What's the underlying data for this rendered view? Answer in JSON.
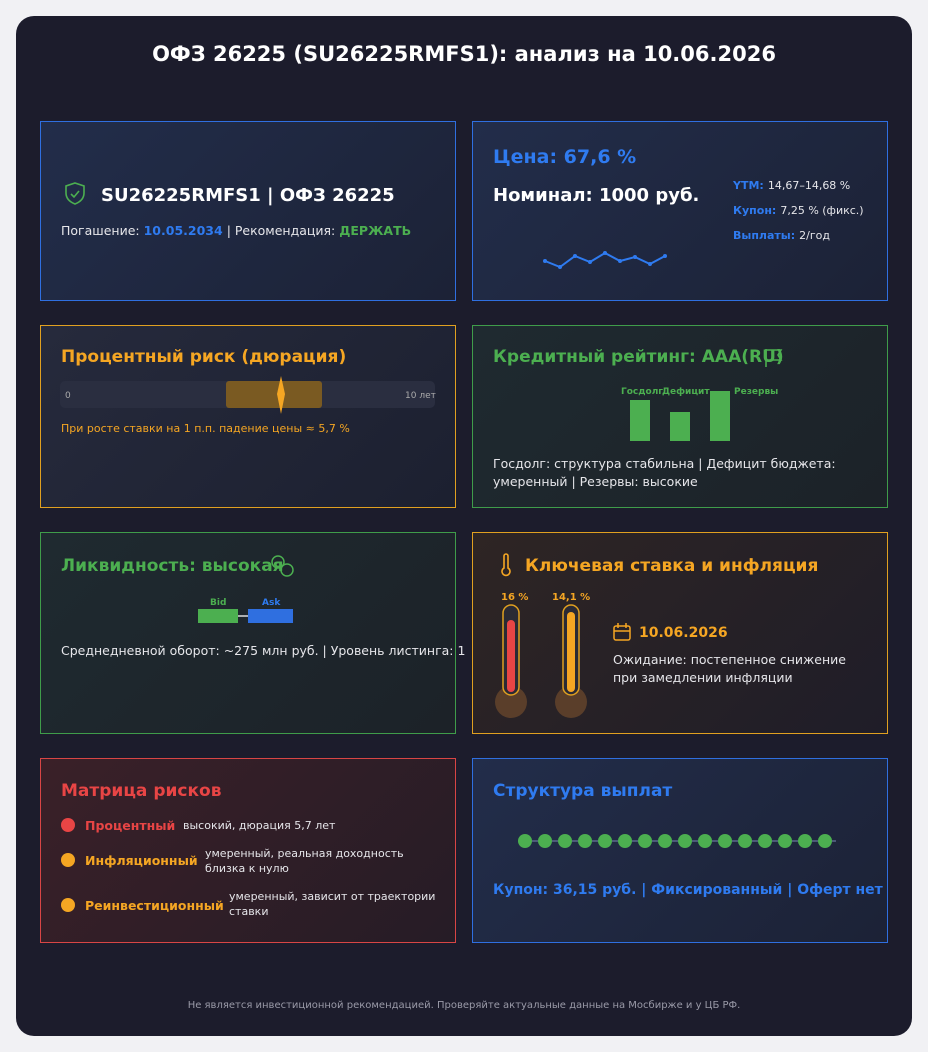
{
  "header": {
    "title": "ОФЗ 26225 (SU26225RMFS1): анализ на 10.06.2026"
  },
  "cards": {
    "bond": {
      "title": "SU26225RMFS1 | ОФЗ 26225",
      "maturity_label": "Погашение:",
      "maturity": "10.05.2034",
      "recommendation_label": "| Рекомендация:",
      "recommendation": "ДЕРЖАТЬ"
    },
    "price": {
      "price": "Цена: 67,6 %",
      "nominal": "Номинал: 1000 руб.",
      "ytm_label": "YTM:",
      "ytm": "14,67–14,68 %",
      "coupon_label": "Купон:",
      "coupon": "7,25 % (фикс.)",
      "payments_label": "Выплаты:",
      "payments": "2/год"
    },
    "duration": {
      "title": "Процентный риск (дюрация)",
      "scale_min": "0",
      "scale_max": "10 лет",
      "note": "При росте ставки на 1 п.п. падение цены ≈ 5,7 %"
    },
    "rating": {
      "title": "Кредитный рейтинг: AAA(RU)",
      "bars": [
        "Госдолг",
        "Дефицит",
        "Резервы"
      ],
      "note": "Госдолг: структура стабильна | Дефицит бюджета: умеренный | Резервы: высокие"
    },
    "liquidity": {
      "title": "Ликвидность: высокая",
      "bid": "Bid",
      "ask": "Ask",
      "note": "Среднедневной оборот: ~275 млн руб. | Уровень листинга: 1"
    },
    "rates": {
      "title": "Ключевая ставка и инфляция",
      "key_rate": "16 %",
      "inflation": "14,1 %",
      "date": "10.06.2026",
      "note": "Ожидание: постепенное снижение при замедлении инфляции"
    },
    "risks": {
      "title": "Матрица рисков",
      "items": [
        {
          "name": "Процентный",
          "text": "высокий, дюрация 5,7 лет"
        },
        {
          "name": "Инфляционный",
          "text": "умеренный, реальная доходность близка к нулю"
        },
        {
          "name": "Реинвестиционный",
          "text": "умеренный, зависит от траектории ставки"
        }
      ]
    },
    "payments": {
      "title": "Структура выплат",
      "summary": "Купон: 36,15 руб. | Фиксированный | Оферт нет"
    }
  },
  "footer": "Не является инвестиционной рекомендацией. Проверяйте актуальные данные на Мосбирже и у ЦБ РФ."
}
